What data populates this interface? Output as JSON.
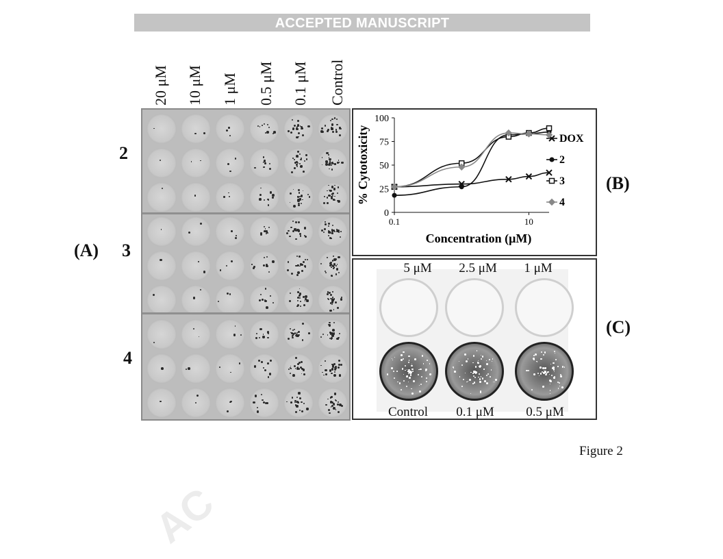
{
  "banner": "ACCEPTED MANUSCRIPT",
  "panel_a": {
    "letter": "(A)",
    "columns": [
      "20 μM",
      "10 μM",
      "1 μM",
      "0.5 μM",
      "0.1 μM",
      "Control"
    ],
    "rows": [
      "2",
      "3",
      "4"
    ]
  },
  "panel_b": {
    "letter": "(B)",
    "chart_data": {
      "type": "line",
      "xlabel": "Concentration (μM)",
      "ylabel": "% Cytotoxicity",
      "xscale": "log",
      "x_ticks": [
        "0.1",
        "10"
      ],
      "y_ticks": [
        "0",
        "25",
        "50",
        "75",
        "100"
      ],
      "ylim": [
        0,
        100
      ],
      "legend_position": "right",
      "series": [
        {
          "name": "DOX",
          "marker": "x",
          "color": "#111111",
          "x": [
            0.1,
            1,
            5,
            10,
            20
          ],
          "y": [
            27,
            30,
            35,
            38,
            42
          ]
        },
        {
          "name": "2",
          "marker": "filled-circle",
          "color": "#111111",
          "x": [
            0.1,
            1,
            5,
            10,
            20
          ],
          "y": [
            18,
            27,
            82,
            83,
            85
          ]
        },
        {
          "name": "3",
          "marker": "open-square",
          "color": "#111111",
          "x": [
            0.1,
            1,
            5,
            10,
            20
          ],
          "y": [
            27,
            52,
            80,
            84,
            89
          ]
        },
        {
          "name": "4",
          "marker": "diamond",
          "color": "#888888",
          "x": [
            0.1,
            1,
            5,
            10,
            20
          ],
          "y": [
            27,
            48,
            84,
            83,
            82
          ]
        }
      ]
    }
  },
  "panel_c": {
    "letter": "(C)",
    "top_labels": [
      "5 μM",
      "2.5 μM",
      "1 μM"
    ],
    "bottom_labels": [
      "Control",
      "0.1 μM",
      "0.5 μM"
    ]
  },
  "caption": "Figure 2",
  "watermark": "AC"
}
